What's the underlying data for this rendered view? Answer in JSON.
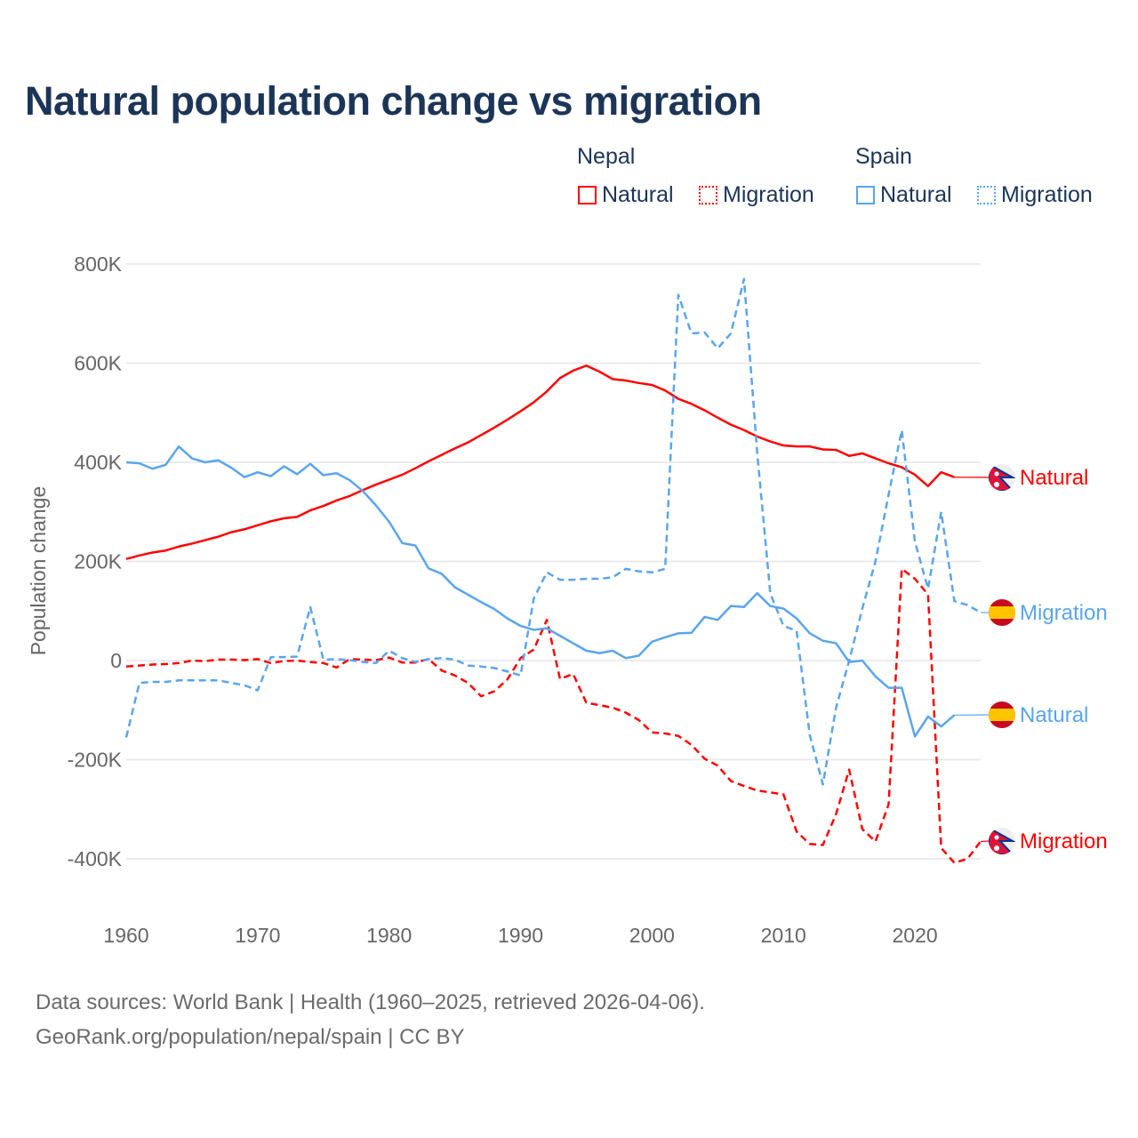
{
  "title": "Natural population change vs migration",
  "legend": {
    "groups": [
      {
        "name": "Nepal",
        "items": [
          {
            "label": "Natural",
            "color": "#ff0000",
            "style": "solid"
          },
          {
            "label": "Migration",
            "color": "#ff0000",
            "style": "dotted"
          }
        ]
      },
      {
        "name": "Spain",
        "items": [
          {
            "label": "Natural",
            "color": "#5aa5eb",
            "style": "solid"
          },
          {
            "label": "Migration",
            "color": "#5aa5eb",
            "style": "dotted"
          }
        ]
      }
    ]
  },
  "source": {
    "line1": "Data sources: World Bank | Health (1960–2025, retrieved 2026-04-06).",
    "line2": "GeoRank.org/population/nepal/spain | CC BY"
  },
  "chart_data": {
    "type": "line",
    "title": "Natural population change vs migration",
    "xlabel": "",
    "ylabel": "Population change",
    "xlim": [
      1960,
      2025
    ],
    "ylim": [
      -400000,
      800000
    ],
    "x_ticks": [
      1960,
      1970,
      1980,
      1990,
      2000,
      2010,
      2020
    ],
    "x_tick_labels": [
      "1960",
      "1970",
      "1980",
      "1990",
      "2000",
      "2010",
      "2020"
    ],
    "y_ticks": [
      800000,
      600000,
      400000,
      200000,
      0,
      -200000,
      -400000
    ],
    "y_tick_labels": [
      "800K",
      "600K",
      "400K",
      "200K",
      "0",
      "-200K",
      "-400K"
    ],
    "grid": true,
    "legend_position": "top-right",
    "series": [
      {
        "name": "Nepal Natural",
        "end_label": "Natural",
        "flag": "nepal",
        "color": "#ff0000",
        "dash": "solid",
        "start": 1960,
        "values_k": [
          205,
          212,
          218,
          222,
          230,
          236,
          243,
          250,
          259,
          265,
          273,
          281,
          287,
          290,
          303,
          312,
          323,
          332,
          344,
          355,
          365,
          375,
          388,
          402,
          415,
          428,
          440,
          455,
          470,
          486,
          503,
          521,
          543,
          570,
          585,
          595,
          583,
          568,
          565,
          560,
          556,
          545,
          528,
          518,
          505,
          490,
          476,
          465,
          452,
          442,
          434,
          432,
          432,
          426,
          425,
          413,
          418,
          408,
          398,
          390,
          375,
          352,
          380,
          370
        ]
      },
      {
        "name": "Nepal Migration",
        "end_label": "Migration",
        "flag": "nepal",
        "color": "#ff0000",
        "dash": "dashed",
        "start": 1960,
        "values_k": [
          -12,
          -10,
          -8,
          -7,
          -5,
          0,
          -1,
          2,
          2,
          1,
          3,
          -5,
          -1,
          0,
          -3,
          -5,
          -14,
          3,
          2,
          1,
          6,
          -4,
          -4,
          3,
          -20,
          -30,
          -45,
          -72,
          -62,
          -38,
          5,
          22,
          82,
          -37,
          -27,
          -85,
          -90,
          -95,
          -105,
          -120,
          -145,
          -147,
          -152,
          -170,
          -198,
          -212,
          -243,
          -253,
          -262,
          -266,
          -270,
          -345,
          -370,
          -372,
          -310,
          -220,
          -340,
          -365,
          -290,
          185,
          165,
          133,
          -378,
          -408,
          -400,
          -365
        ]
      },
      {
        "name": "Spain Natural",
        "end_label": "Natural",
        "flag": "spain",
        "color": "#5aa5eb",
        "dash": "solid",
        "start": 1960,
        "values_k": [
          400,
          398,
          387,
          395,
          432,
          408,
          400,
          404,
          389,
          370,
          380,
          372,
          392,
          376,
          397,
          374,
          378,
          364,
          342,
          313,
          280,
          237,
          232,
          186,
          175,
          148,
          133,
          118,
          104,
          85,
          70,
          62,
          65,
          50,
          35,
          20,
          15,
          20,
          5,
          10,
          38,
          47,
          55,
          56,
          88,
          82,
          110,
          108,
          136,
          110,
          105,
          85,
          55,
          40,
          35,
          -3,
          0,
          -32,
          -55,
          -55,
          -153,
          -113,
          -133,
          -110
        ]
      },
      {
        "name": "Spain Migration",
        "end_label": "Migration",
        "flag": "spain",
        "color": "#5aa5eb",
        "dash": "dashed",
        "start": 1960,
        "values_k": [
          -155,
          -45,
          -43,
          -43,
          -40,
          -40,
          -40,
          -40,
          -45,
          -50,
          -60,
          7,
          7,
          8,
          108,
          2,
          3,
          1,
          -3,
          -5,
          20,
          5,
          -3,
          3,
          5,
          2,
          -10,
          -12,
          -15,
          -22,
          -30,
          125,
          178,
          163,
          163,
          165,
          165,
          168,
          185,
          180,
          178,
          185,
          738,
          660,
          662,
          630,
          660,
          770,
          420,
          135,
          70,
          60,
          -150,
          -250,
          -95,
          0,
          105,
          200,
          335,
          465,
          240,
          145,
          300,
          120,
          112,
          97
        ]
      }
    ]
  }
}
